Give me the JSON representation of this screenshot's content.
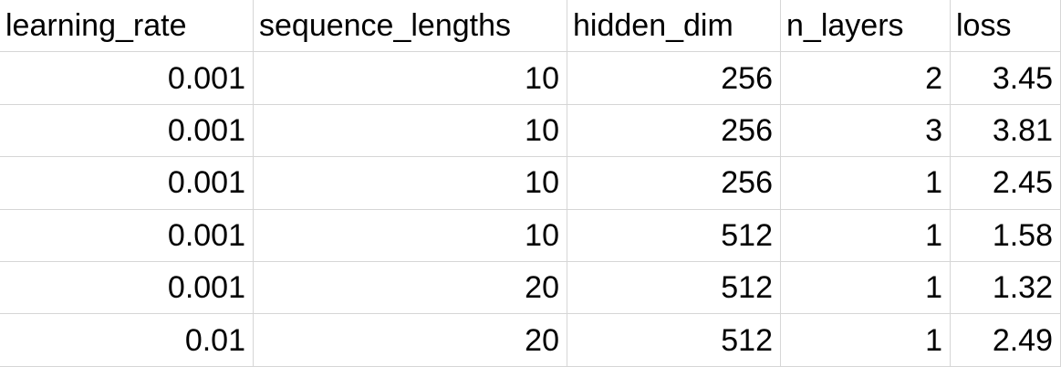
{
  "table": {
    "headers": [
      "learning_rate",
      "sequence_lengths",
      "hidden_dim",
      "n_layers",
      "loss"
    ],
    "rows": [
      [
        "0.001",
        "10",
        "256",
        "2",
        "3.45"
      ],
      [
        "0.001",
        "10",
        "256",
        "3",
        "3.81"
      ],
      [
        "0.001",
        "10",
        "256",
        "1",
        "2.45"
      ],
      [
        "0.001",
        "10",
        "512",
        "1",
        "1.58"
      ],
      [
        "0.001",
        "20",
        "512",
        "1",
        "1.32"
      ],
      [
        "0.01",
        "20",
        "512",
        "1",
        "2.49"
      ]
    ]
  }
}
